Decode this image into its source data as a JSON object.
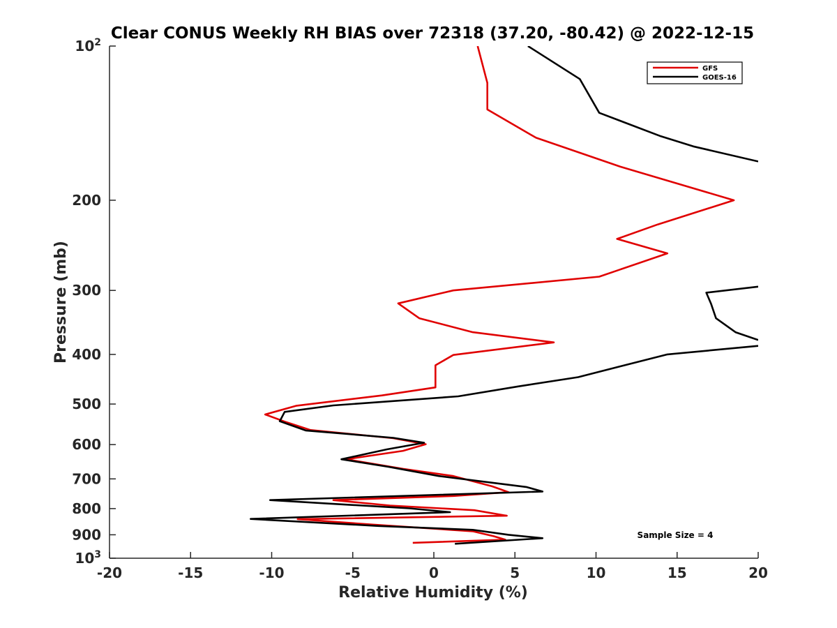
{
  "chart_data": {
    "type": "line",
    "title": "Clear CONUS Weekly RH BIAS over 72318 (37.20, -80.42) @ 2022-12-15",
    "xlabel": "Relative Humidity (%)",
    "ylabel": "Pressure (mb)",
    "xlim": [
      -20,
      20
    ],
    "ylim": [
      100,
      1000
    ],
    "y_scale": "log",
    "y_reversed": true,
    "x_ticks": [
      "-20",
      "-15",
      "-10",
      "-5",
      "0",
      "5",
      "10",
      "15",
      "20"
    ],
    "x_tick_values": [
      -20,
      -15,
      -10,
      -5,
      0,
      5,
      10,
      15,
      20
    ],
    "y_ticks": [
      {
        "value": 100,
        "base": "10",
        "exp": "2"
      },
      {
        "value": 200,
        "label": "200"
      },
      {
        "value": 300,
        "label": "300"
      },
      {
        "value": 400,
        "label": "400"
      },
      {
        "value": 500,
        "label": "500"
      },
      {
        "value": 600,
        "label": "600"
      },
      {
        "value": 700,
        "label": "700"
      },
      {
        "value": 800,
        "label": "800"
      },
      {
        "value": 900,
        "label": "900"
      },
      {
        "value": 1000,
        "base": "10",
        "exp": "3"
      }
    ],
    "legend_position": "top-right",
    "annotation": "Sample Size = 4",
    "grid": false,
    "series": [
      {
        "name": "GFS",
        "color": "#e00000",
        "points": [
          [
            2.7,
            100
          ],
          [
            3.3,
            118
          ],
          [
            3.3,
            133
          ],
          [
            6.3,
            151
          ],
          [
            11.5,
            172
          ],
          [
            18.5,
            200
          ],
          [
            13.8,
            223
          ],
          [
            11.3,
            238
          ],
          [
            14.4,
            254
          ],
          [
            10.2,
            282
          ],
          [
            1.2,
            300
          ],
          [
            -2.2,
            318
          ],
          [
            -0.9,
            340
          ],
          [
            2.4,
            362
          ],
          [
            7.4,
            379
          ],
          [
            1.2,
            401
          ],
          [
            0.1,
            420
          ],
          [
            0.1,
            464
          ],
          [
            -3.2,
            481
          ],
          [
            -8.5,
            504
          ],
          [
            -10.4,
            524
          ],
          [
            -9.2,
            541
          ],
          [
            -7.6,
            562
          ],
          [
            -2.5,
            583
          ],
          [
            -0.5,
            599
          ],
          [
            -1.9,
            617
          ],
          [
            -5.4,
            641
          ],
          [
            -1.9,
            669
          ],
          [
            1.2,
            691
          ],
          [
            3.6,
            724
          ],
          [
            4.6,
            743
          ],
          [
            1.2,
            756
          ],
          [
            -6.2,
            770
          ],
          [
            -2.7,
            789
          ],
          [
            2.5,
            806
          ],
          [
            4.5,
            826
          ],
          [
            -8.4,
            839
          ],
          [
            -3.7,
            860
          ],
          [
            2.4,
            886
          ],
          [
            3.7,
            906
          ],
          [
            4.4,
            920
          ],
          [
            -1.3,
            933
          ]
        ]
      },
      {
        "name": "GOES-16",
        "color": "#000000",
        "segments": [
          [
            [
              5.8,
              100
            ],
            [
              9.0,
              116
            ],
            [
              10.2,
              135
            ],
            [
              14.0,
              150
            ],
            [
              16.0,
              157
            ],
            [
              20.0,
              168
            ]
          ],
          [
            [
              20.0,
              295
            ],
            [
              16.8,
              303
            ],
            [
              17.1,
              319
            ],
            [
              17.4,
              340
            ],
            [
              18.6,
              362
            ],
            [
              20.0,
              375
            ]
          ],
          [
            [
              20.0,
              385
            ],
            [
              14.4,
              400
            ],
            [
              11.5,
              422
            ],
            [
              8.9,
              443
            ],
            [
              5.2,
              462
            ],
            [
              1.5,
              483
            ],
            [
              -6.2,
              503
            ],
            [
              -9.2,
              518
            ],
            [
              -9.5,
              540
            ],
            [
              -7.9,
              563
            ],
            [
              -2.5,
              582
            ],
            [
              -0.6,
              595
            ],
            [
              -2.9,
              613
            ],
            [
              -5.7,
              641
            ],
            [
              -2.8,
              663
            ],
            [
              0.3,
              691
            ],
            [
              5.7,
              726
            ],
            [
              6.7,
              741
            ],
            [
              -10.1,
              770
            ],
            [
              -1.5,
              799
            ],
            [
              1.0,
              813
            ],
            [
              -11.3,
              838
            ],
            [
              -3.4,
              865
            ],
            [
              2.4,
              880
            ],
            [
              4.6,
              900
            ],
            [
              6.7,
              914
            ],
            [
              1.3,
              937
            ]
          ]
        ]
      }
    ]
  }
}
